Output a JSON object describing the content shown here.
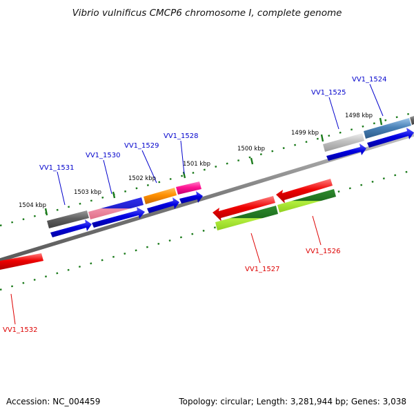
{
  "title": "Vibrio vulnificus CMCP6 chromosome I, complete genome",
  "accession": "Accession: NC_004459",
  "summary": "Topology: circular; Length: 3,281,944 bp; Genes: 3,038",
  "kbp_labels": [
    "1498 kbp",
    "1499 kbp",
    "1500 kbp",
    "1501 kbp",
    "1502 kbp",
    "1503 kbp",
    "1504 kbp"
  ],
  "gene_labels": [
    "VV1_1524",
    "VV1_1525",
    "VV1_1526",
    "VV1_1527",
    "VV1_1528",
    "VV1_1529",
    "VV1_1530",
    "VV1_1531",
    "VV1_1532"
  ],
  "colors": {
    "forward_label": "#0000cc",
    "reverse_label": "#dd0000",
    "backbone": "#8a8a8a",
    "tick": "#1a7a1a"
  }
}
